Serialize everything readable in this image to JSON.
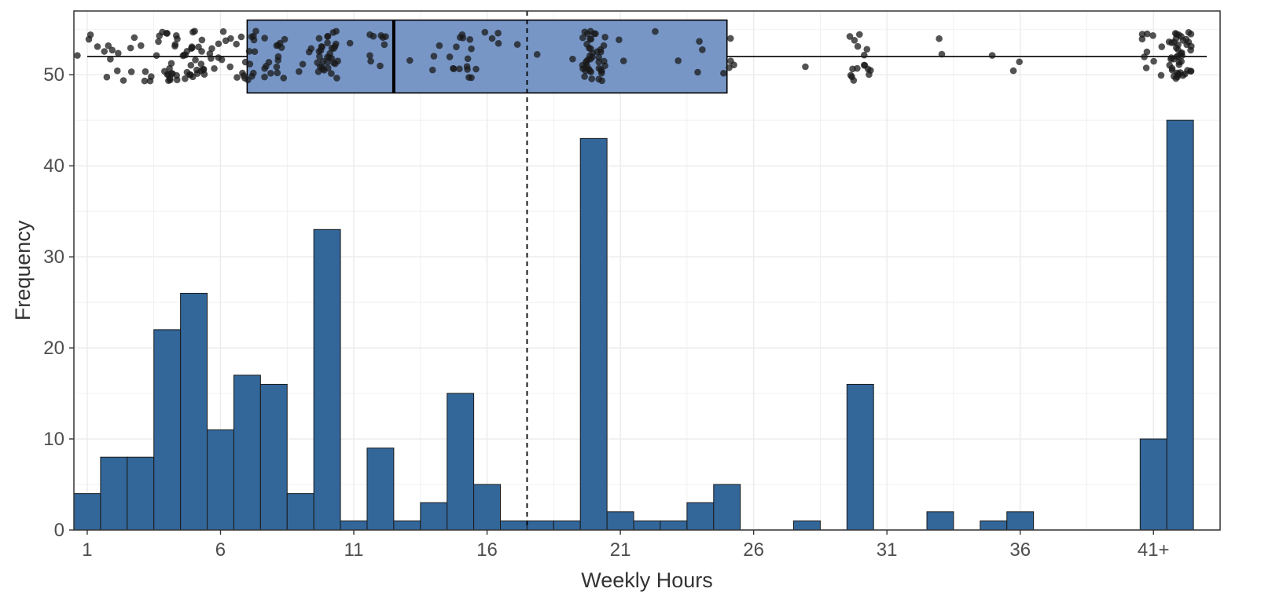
{
  "chart_data": {
    "type": "bar",
    "xlabel": "Weekly Hours",
    "ylabel": "Frequency",
    "xlim": [
      0.5,
      43.5
    ],
    "ylim": [
      0,
      57
    ],
    "grid": true,
    "x_ticks": [
      {
        "value": 1,
        "label": "1"
      },
      {
        "value": 6,
        "label": "6"
      },
      {
        "value": 11,
        "label": "11"
      },
      {
        "value": 16,
        "label": "16"
      },
      {
        "value": 21,
        "label": "21"
      },
      {
        "value": 26,
        "label": "26"
      },
      {
        "value": 31,
        "label": "31"
      },
      {
        "value": 36,
        "label": "36"
      },
      {
        "value": 41,
        "label": "41+"
      }
    ],
    "y_ticks": [
      {
        "value": 0,
        "label": "0"
      },
      {
        "value": 10,
        "label": "10"
      },
      {
        "value": 20,
        "label": "20"
      },
      {
        "value": 30,
        "label": "30"
      },
      {
        "value": 40,
        "label": "40"
      },
      {
        "value": 50,
        "label": "50"
      }
    ],
    "bin_width": 1,
    "bins": [
      {
        "x": 1,
        "count": 4
      },
      {
        "x": 2,
        "count": 8
      },
      {
        "x": 3,
        "count": 8
      },
      {
        "x": 4,
        "count": 22
      },
      {
        "x": 5,
        "count": 26
      },
      {
        "x": 6,
        "count": 11
      },
      {
        "x": 7,
        "count": 17
      },
      {
        "x": 8,
        "count": 16
      },
      {
        "x": 9,
        "count": 4
      },
      {
        "x": 10,
        "count": 33
      },
      {
        "x": 11,
        "count": 1
      },
      {
        "x": 12,
        "count": 9
      },
      {
        "x": 13,
        "count": 1
      },
      {
        "x": 14,
        "count": 3
      },
      {
        "x": 15,
        "count": 15
      },
      {
        "x": 16,
        "count": 5
      },
      {
        "x": 17,
        "count": 1
      },
      {
        "x": 18,
        "count": 1
      },
      {
        "x": 19,
        "count": 1
      },
      {
        "x": 20,
        "count": 43
      },
      {
        "x": 21,
        "count": 2
      },
      {
        "x": 22,
        "count": 1
      },
      {
        "x": 23,
        "count": 1
      },
      {
        "x": 24,
        "count": 3
      },
      {
        "x": 25,
        "count": 5
      },
      {
        "x": 28,
        "count": 1
      },
      {
        "x": 30,
        "count": 16
      },
      {
        "x": 33,
        "count": 2
      },
      {
        "x": 35,
        "count": 1
      },
      {
        "x": 36,
        "count": 2
      },
      {
        "x": 41,
        "count": 10
      },
      {
        "x": 42,
        "count": 45
      }
    ],
    "boxplot": {
      "y_center": 52,
      "y_range": [
        48,
        56
      ],
      "whisker_min": 1,
      "q1": 7,
      "median": 12.5,
      "q3": 25,
      "whisker_max": 43,
      "jitter_y_range": [
        49.3,
        54.8
      ]
    },
    "mean_line": 17.5,
    "colors": {
      "bar_fill": "#336699",
      "box_fill": "#7796C6",
      "point": "#1a1a1a",
      "grid": "#ebebeb",
      "border": "#333333"
    }
  }
}
